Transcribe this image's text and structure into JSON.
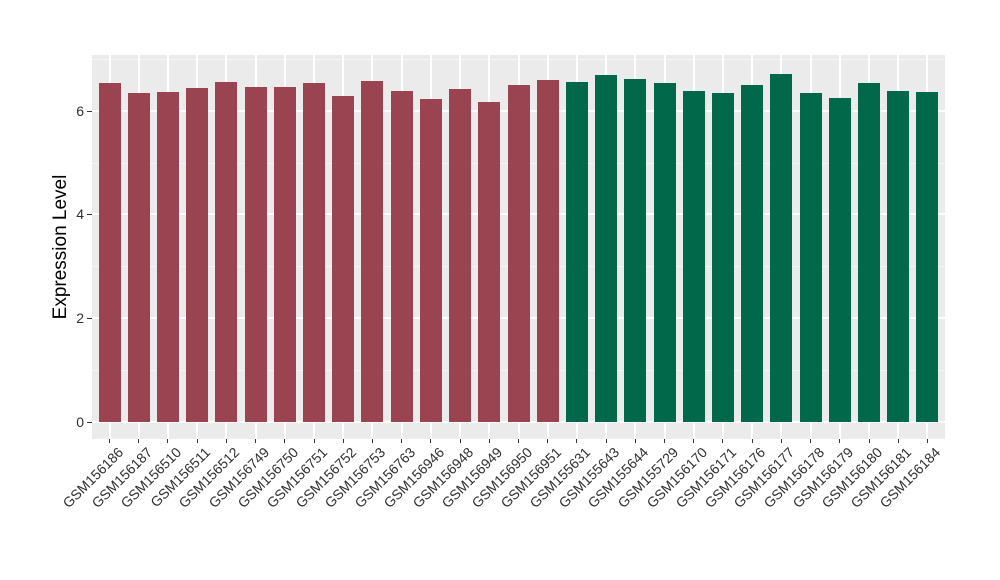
{
  "chart_data": {
    "type": "bar",
    "title": "",
    "xlabel": "",
    "ylabel": "Expression Level",
    "legend": "none",
    "grid": "white major+minor horizontal gridlines and major vertical gridlines on gray panel",
    "y_ticks": [
      0,
      2,
      4,
      6
    ],
    "y_minor_ticks": [
      1,
      3,
      5,
      7
    ],
    "ylim": [
      0,
      7.07
    ],
    "categories": [
      "GSM156186",
      "GSM156187",
      "GSM156510",
      "GSM156511",
      "GSM156512",
      "GSM156749",
      "GSM156750",
      "GSM156751",
      "GSM156752",
      "GSM156753",
      "GSM156763",
      "GSM156946",
      "GSM156948",
      "GSM156949",
      "GSM156950",
      "GSM156951",
      "GSM155631",
      "GSM155643",
      "GSM155644",
      "GSM155729",
      "GSM156170",
      "GSM156171",
      "GSM156176",
      "GSM156177",
      "GSM156178",
      "GSM156179",
      "GSM156180",
      "GSM156181",
      "GSM156184"
    ],
    "values": [
      6.54,
      6.34,
      6.36,
      6.44,
      6.56,
      6.45,
      6.45,
      6.53,
      6.28,
      6.58,
      6.38,
      6.22,
      6.42,
      6.16,
      6.5,
      6.59,
      6.55,
      6.69,
      6.61,
      6.53,
      6.38,
      6.33,
      6.49,
      6.7,
      6.33,
      6.25,
      6.54,
      6.38,
      6.36
    ],
    "bar_groups": [
      "maroon",
      "maroon",
      "maroon",
      "maroon",
      "maroon",
      "maroon",
      "maroon",
      "maroon",
      "maroon",
      "maroon",
      "maroon",
      "maroon",
      "maroon",
      "maroon",
      "maroon",
      "maroon",
      "green",
      "green",
      "green",
      "green",
      "green",
      "green",
      "green",
      "green",
      "green",
      "green",
      "green",
      "green",
      "green"
    ],
    "group_colors": {
      "maroon": "#9A4451",
      "green": "#01694A"
    },
    "colors": {
      "panel_background": "#EBEBEB",
      "gridline": "#FFFFFF",
      "axis_text": "#303030",
      "tick_mark": "#333333",
      "axis_title": "#000000",
      "figure_background": "#FFFFFF"
    }
  }
}
